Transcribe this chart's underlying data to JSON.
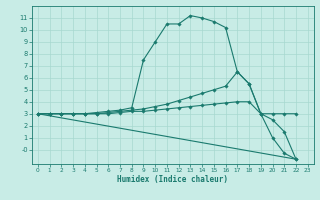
{
  "xlabel": "Humidex (Indice chaleur)",
  "bg_color": "#c8ece6",
  "line_color": "#1a7a6e",
  "grid_color": "#a8d8d0",
  "xlim": [
    -0.5,
    23.5
  ],
  "ylim": [
    -1.2,
    12.0
  ],
  "yticks": [
    0,
    1,
    2,
    3,
    4,
    5,
    6,
    7,
    8,
    9,
    10,
    11
  ],
  "ytick_labels": [
    "-0",
    "1",
    "2",
    "3",
    "4",
    "5",
    "6",
    "7",
    "8",
    "9",
    "10",
    "11"
  ],
  "xticks": [
    0,
    1,
    2,
    3,
    4,
    5,
    6,
    7,
    8,
    9,
    10,
    11,
    12,
    13,
    14,
    15,
    16,
    17,
    18,
    19,
    20,
    21,
    22,
    23
  ],
  "line1_x": [
    0,
    1,
    2,
    3,
    4,
    5,
    6,
    7,
    8,
    9,
    10,
    11,
    12,
    13,
    14,
    15,
    16,
    17,
    18,
    19,
    20,
    21,
    22
  ],
  "line1_y": [
    3.0,
    3.0,
    3.0,
    3.0,
    3.0,
    3.1,
    3.2,
    3.3,
    3.5,
    7.5,
    9.0,
    10.5,
    10.5,
    11.2,
    11.0,
    10.7,
    10.2,
    6.5,
    5.5,
    3.0,
    1.0,
    -0.3,
    -0.8
  ],
  "line2_x": [
    0,
    1,
    2,
    3,
    4,
    5,
    6,
    7,
    8,
    9,
    10,
    11,
    12,
    13,
    14,
    15,
    16,
    17,
    18,
    19,
    20,
    21,
    22
  ],
  "line2_y": [
    3.0,
    3.0,
    3.0,
    3.0,
    3.0,
    3.0,
    3.1,
    3.2,
    3.3,
    3.4,
    3.6,
    3.8,
    4.1,
    4.4,
    4.7,
    5.0,
    5.3,
    6.5,
    5.5,
    3.0,
    3.0,
    3.0,
    3.0
  ],
  "line3_x": [
    0,
    1,
    2,
    3,
    4,
    5,
    6,
    7,
    8,
    9,
    10,
    11,
    12,
    13,
    14,
    15,
    16,
    17,
    18,
    19,
    20,
    21,
    22
  ],
  "line3_y": [
    3.0,
    3.0,
    3.0,
    3.0,
    3.0,
    3.0,
    3.0,
    3.1,
    3.2,
    3.2,
    3.3,
    3.4,
    3.5,
    3.6,
    3.7,
    3.8,
    3.9,
    4.0,
    4.0,
    3.0,
    2.5,
    1.5,
    -0.8
  ],
  "line4_x": [
    0,
    22
  ],
  "line4_y": [
    3.0,
    -0.8
  ]
}
